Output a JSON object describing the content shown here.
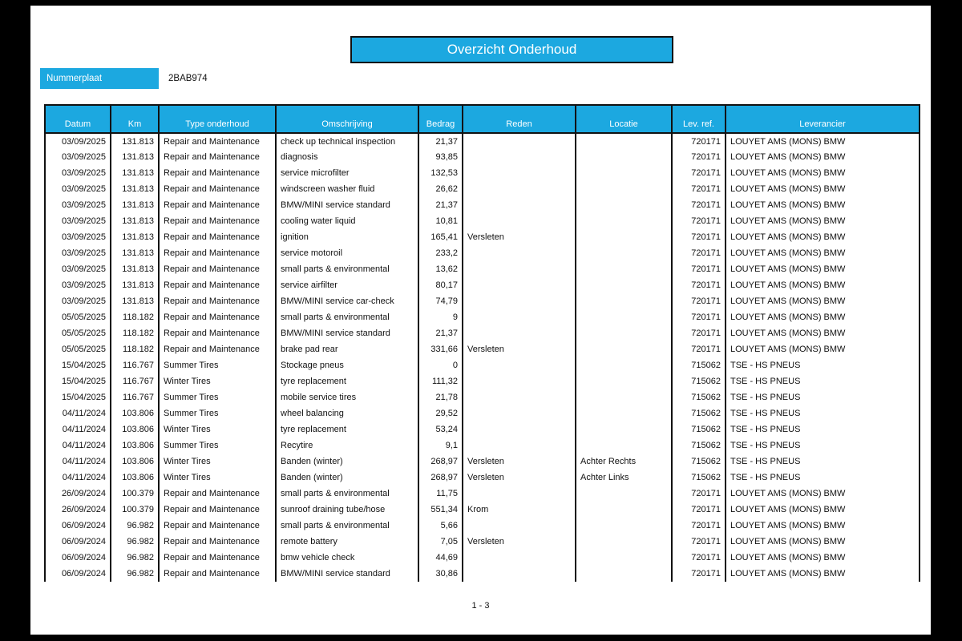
{
  "header": {
    "title": "Overzicht Onderhoud",
    "plate_label": "Nummerplaat",
    "plate_value": "2BAB974"
  },
  "colors": {
    "accent": "#1CA8E0",
    "line": "#111111"
  },
  "table": {
    "columns": [
      {
        "key": "datum",
        "label": "Datum"
      },
      {
        "key": "km",
        "label": "Km"
      },
      {
        "key": "type",
        "label": "Type onderhoud"
      },
      {
        "key": "omschrijving",
        "label": "Omschrijving"
      },
      {
        "key": "bedrag",
        "label": "Bedrag"
      },
      {
        "key": "reden",
        "label": "Reden"
      },
      {
        "key": "locatie",
        "label": "Locatie"
      },
      {
        "key": "lev_ref",
        "label": "Lev. ref."
      },
      {
        "key": "leverancier",
        "label": "Leverancier"
      }
    ],
    "rows": [
      {
        "datum": "03/09/2025",
        "km": "131.813",
        "type": "Repair and Maintenance",
        "omschrijving": "check up technical inspection",
        "bedrag": "21,37",
        "reden": "",
        "locatie": "",
        "lev_ref": "720171",
        "leverancier": "LOUYET AMS (MONS) BMW"
      },
      {
        "datum": "03/09/2025",
        "km": "131.813",
        "type": "Repair and Maintenance",
        "omschrijving": "diagnosis",
        "bedrag": "93,85",
        "reden": "",
        "locatie": "",
        "lev_ref": "720171",
        "leverancier": "LOUYET AMS (MONS) BMW"
      },
      {
        "datum": "03/09/2025",
        "km": "131.813",
        "type": "Repair and Maintenance",
        "omschrijving": "service microfilter",
        "bedrag": "132,53",
        "reden": "",
        "locatie": "",
        "lev_ref": "720171",
        "leverancier": "LOUYET AMS (MONS) BMW"
      },
      {
        "datum": "03/09/2025",
        "km": "131.813",
        "type": "Repair and Maintenance",
        "omschrijving": "windscreen washer fluid",
        "bedrag": "26,62",
        "reden": "",
        "locatie": "",
        "lev_ref": "720171",
        "leverancier": "LOUYET AMS (MONS) BMW"
      },
      {
        "datum": "03/09/2025",
        "km": "131.813",
        "type": "Repair and Maintenance",
        "omschrijving": "BMW/MINI service standard",
        "bedrag": "21,37",
        "reden": "",
        "locatie": "",
        "lev_ref": "720171",
        "leverancier": "LOUYET AMS (MONS) BMW"
      },
      {
        "datum": "03/09/2025",
        "km": "131.813",
        "type": "Repair and Maintenance",
        "omschrijving": "cooling water liquid",
        "bedrag": "10,81",
        "reden": "",
        "locatie": "",
        "lev_ref": "720171",
        "leverancier": "LOUYET AMS (MONS) BMW"
      },
      {
        "datum": "03/09/2025",
        "km": "131.813",
        "type": "Repair and Maintenance",
        "omschrijving": "ignition",
        "bedrag": "165,41",
        "reden": "Versleten",
        "locatie": "",
        "lev_ref": "720171",
        "leverancier": "LOUYET AMS (MONS) BMW"
      },
      {
        "datum": "03/09/2025",
        "km": "131.813",
        "type": "Repair and Maintenance",
        "omschrijving": "service motoroil",
        "bedrag": "233,2",
        "reden": "",
        "locatie": "",
        "lev_ref": "720171",
        "leverancier": "LOUYET AMS (MONS) BMW"
      },
      {
        "datum": "03/09/2025",
        "km": "131.813",
        "type": "Repair and Maintenance",
        "omschrijving": "small parts & environmental",
        "bedrag": "13,62",
        "reden": "",
        "locatie": "",
        "lev_ref": "720171",
        "leverancier": "LOUYET AMS (MONS) BMW"
      },
      {
        "datum": "03/09/2025",
        "km": "131.813",
        "type": "Repair and Maintenance",
        "omschrijving": "service airfilter",
        "bedrag": "80,17",
        "reden": "",
        "locatie": "",
        "lev_ref": "720171",
        "leverancier": "LOUYET AMS (MONS) BMW"
      },
      {
        "datum": "03/09/2025",
        "km": "131.813",
        "type": "Repair and Maintenance",
        "omschrijving": "BMW/MINI service car-check",
        "bedrag": "74,79",
        "reden": "",
        "locatie": "",
        "lev_ref": "720171",
        "leverancier": "LOUYET AMS (MONS) BMW"
      },
      {
        "datum": "05/05/2025",
        "km": "118.182",
        "type": "Repair and Maintenance",
        "omschrijving": "small parts & environmental",
        "bedrag": "9",
        "reden": "",
        "locatie": "",
        "lev_ref": "720171",
        "leverancier": "LOUYET AMS (MONS) BMW"
      },
      {
        "datum": "05/05/2025",
        "km": "118.182",
        "type": "Repair and Maintenance",
        "omschrijving": "BMW/MINI service standard",
        "bedrag": "21,37",
        "reden": "",
        "locatie": "",
        "lev_ref": "720171",
        "leverancier": "LOUYET AMS (MONS) BMW"
      },
      {
        "datum": "05/05/2025",
        "km": "118.182",
        "type": "Repair and Maintenance",
        "omschrijving": "brake pad rear",
        "bedrag": "331,66",
        "reden": "Versleten",
        "locatie": "",
        "lev_ref": "720171",
        "leverancier": "LOUYET AMS (MONS) BMW"
      },
      {
        "datum": "15/04/2025",
        "km": "116.767",
        "type": "Summer Tires",
        "omschrijving": "Stockage pneus",
        "bedrag": "0",
        "reden": "",
        "locatie": "",
        "lev_ref": "715062",
        "leverancier": "TSE - HS PNEUS"
      },
      {
        "datum": "15/04/2025",
        "km": "116.767",
        "type": "Winter Tires",
        "omschrijving": "tyre replacement",
        "bedrag": "111,32",
        "reden": "",
        "locatie": "",
        "lev_ref": "715062",
        "leverancier": "TSE - HS PNEUS"
      },
      {
        "datum": "15/04/2025",
        "km": "116.767",
        "type": "Summer Tires",
        "omschrijving": "mobile service tires",
        "bedrag": "21,78",
        "reden": "",
        "locatie": "",
        "lev_ref": "715062",
        "leverancier": "TSE - HS PNEUS"
      },
      {
        "datum": "04/11/2024",
        "km": "103.806",
        "type": "Summer Tires",
        "omschrijving": "wheel balancing",
        "bedrag": "29,52",
        "reden": "",
        "locatie": "",
        "lev_ref": "715062",
        "leverancier": "TSE - HS PNEUS"
      },
      {
        "datum": "04/11/2024",
        "km": "103.806",
        "type": "Winter Tires",
        "omschrijving": "tyre replacement",
        "bedrag": "53,24",
        "reden": "",
        "locatie": "",
        "lev_ref": "715062",
        "leverancier": "TSE - HS PNEUS"
      },
      {
        "datum": "04/11/2024",
        "km": "103.806",
        "type": "Summer Tires",
        "omschrijving": "Recytire",
        "bedrag": "9,1",
        "reden": "",
        "locatie": "",
        "lev_ref": "715062",
        "leverancier": "TSE - HS PNEUS"
      },
      {
        "datum": "04/11/2024",
        "km": "103.806",
        "type": "Winter Tires",
        "omschrijving": "Banden (winter)",
        "bedrag": "268,97",
        "reden": "Versleten",
        "locatie": "Achter Rechts",
        "lev_ref": "715062",
        "leverancier": "TSE - HS PNEUS"
      },
      {
        "datum": "04/11/2024",
        "km": "103.806",
        "type": "Winter Tires",
        "omschrijving": "Banden (winter)",
        "bedrag": "268,97",
        "reden": "Versleten",
        "locatie": "Achter Links",
        "lev_ref": "715062",
        "leverancier": "TSE - HS PNEUS"
      },
      {
        "datum": "26/09/2024",
        "km": "100.379",
        "type": "Repair and Maintenance",
        "omschrijving": "small parts & environmental",
        "bedrag": "11,75",
        "reden": "",
        "locatie": "",
        "lev_ref": "720171",
        "leverancier": "LOUYET AMS (MONS) BMW"
      },
      {
        "datum": "26/09/2024",
        "km": "100.379",
        "type": "Repair and Maintenance",
        "omschrijving": "sunroof draining tube/hose",
        "bedrag": "551,34",
        "reden": "Krom",
        "locatie": "",
        "lev_ref": "720171",
        "leverancier": "LOUYET AMS (MONS) BMW"
      },
      {
        "datum": "06/09/2024",
        "km": "96.982",
        "type": "Repair and Maintenance",
        "omschrijving": "small parts & environmental",
        "bedrag": "5,66",
        "reden": "",
        "locatie": "",
        "lev_ref": "720171",
        "leverancier": "LOUYET AMS (MONS) BMW"
      },
      {
        "datum": "06/09/2024",
        "km": "96.982",
        "type": "Repair and Maintenance",
        "omschrijving": "remote battery",
        "bedrag": "7,05",
        "reden": "Versleten",
        "locatie": "",
        "lev_ref": "720171",
        "leverancier": "LOUYET AMS (MONS) BMW"
      },
      {
        "datum": "06/09/2024",
        "km": "96.982",
        "type": "Repair and Maintenance",
        "omschrijving": "bmw vehicle check",
        "bedrag": "44,69",
        "reden": "",
        "locatie": "",
        "lev_ref": "720171",
        "leverancier": "LOUYET AMS (MONS) BMW"
      },
      {
        "datum": "06/09/2024",
        "km": "96.982",
        "type": "Repair and Maintenance",
        "omschrijving": "BMW/MINI service standard",
        "bedrag": "30,86",
        "reden": "",
        "locatie": "",
        "lev_ref": "720171",
        "leverancier": "LOUYET AMS (MONS) BMW"
      }
    ]
  },
  "footer": {
    "page_indicator": "1 - 3"
  }
}
